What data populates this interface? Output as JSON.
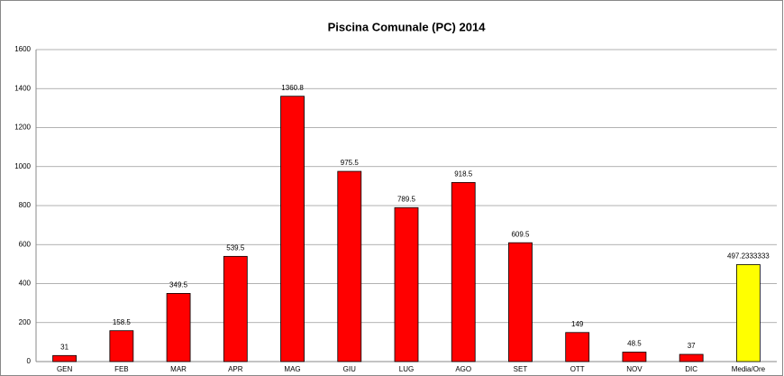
{
  "chart_data": {
    "type": "bar",
    "title": "Piscina Comunale (PC) 2014",
    "categories": [
      "GEN",
      "FEB",
      "MAR",
      "APR",
      "MAG",
      "GIU",
      "LUG",
      "AGO",
      "SET",
      "OTT",
      "NOV",
      "DIC",
      "Media/Ore"
    ],
    "values": [
      31,
      158.5,
      349.5,
      539.5,
      1360.8,
      975.5,
      789.5,
      918.5,
      609.5,
      149,
      48.5,
      37,
      497.2333333
    ],
    "colors": [
      "#ff0000",
      "#ff0000",
      "#ff0000",
      "#ff0000",
      "#ff0000",
      "#ff0000",
      "#ff0000",
      "#ff0000",
      "#ff0000",
      "#ff0000",
      "#ff0000",
      "#ff0000",
      "#ffff00"
    ],
    "ylim": [
      0,
      1600
    ],
    "yticks": [
      0,
      200,
      400,
      600,
      800,
      1000,
      1200,
      1400,
      1600
    ],
    "grid": true
  }
}
